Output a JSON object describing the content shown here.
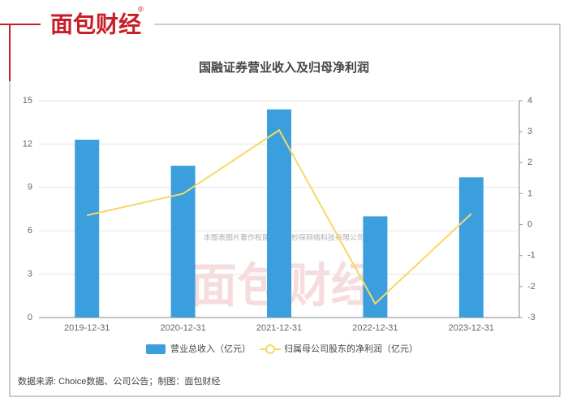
{
  "brand": "面包财经",
  "brand_mark": "®",
  "watermark_note": "本图表图片著作权属于上海杪探网络科技有限公司",
  "source_note": "数据来源: Choice数据、公司公告；制图：面包财经",
  "chart_data": {
    "type": "bar_line",
    "title": "国融证券营业收入及归母净利润",
    "categories": [
      "2019-12-31",
      "2020-12-31",
      "2021-12-31",
      "2022-12-31",
      "2023-12-31"
    ],
    "series": [
      {
        "name": "营业总收入（亿元）",
        "color": "#3a9fdc",
        "type": "bar",
        "values": [
          12.3,
          10.5,
          14.4,
          7.0,
          9.7
        ]
      },
      {
        "name": "归属母公司股东的净利润（亿元）",
        "color": "#f6d866",
        "type": "line",
        "axis": "y2",
        "values": [
          0.3,
          1.0,
          3.05,
          -2.55,
          0.35
        ]
      }
    ],
    "ylim": [
      0,
      15
    ],
    "yticks": [
      0,
      3,
      6,
      9,
      12,
      15
    ],
    "y2lim": [
      -3,
      4
    ],
    "y2ticks": [
      -3,
      -2,
      -1,
      0,
      1,
      2,
      3,
      4
    ],
    "grid": true
  }
}
